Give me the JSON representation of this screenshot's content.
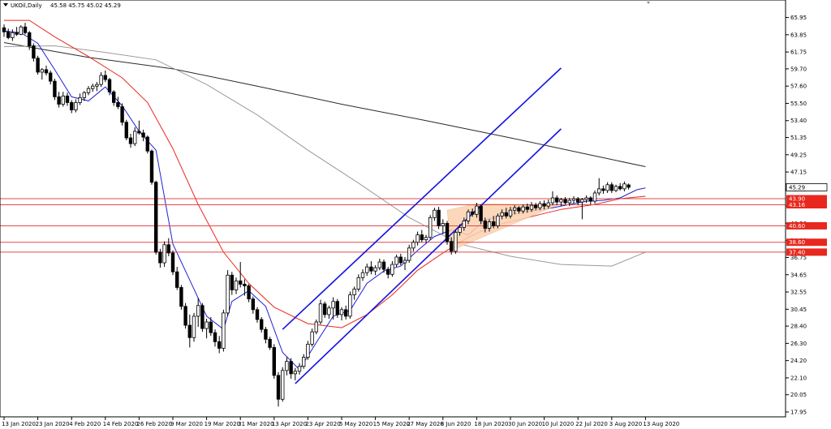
{
  "header": {
    "symbol": "UKOil,Daily",
    "ohlc": "45.58 45.75 45.02 45.29"
  },
  "colors": {
    "candle": "#000000",
    "ma_fast": "#1f1fd6",
    "ma_mid": "#e8281e",
    "ma_slow_dark": "#2a2a2a",
    "ma_slow_grey": "#9a9a9a",
    "channel": "#1414e0",
    "levels": "#e04a4a",
    "triangle_fill": "#fcd2b0",
    "last_price_bg": "#ffffff",
    "level_badge_bg": "#e8281e"
  },
  "chart_data": {
    "type": "candlestick",
    "title": "",
    "xlabel": "",
    "ylabel": "",
    "ylim": [
      17.95,
      66.4
    ],
    "y_ticks": [
      "65.95",
      "63.85",
      "61.75",
      "59.70",
      "57.60",
      "55.50",
      "53.40",
      "51.35",
      "49.25",
      "47.15",
      "45.05",
      "43.00",
      "40.90",
      "38.80",
      "36.75",
      "34.65",
      "32.55",
      "30.45",
      "28.40",
      "26.30",
      "24.20",
      "22.10",
      "20.05",
      "17.95"
    ],
    "x_ticks": [
      "13 Jan 2020",
      "23 Jan 2020",
      "4 Feb 2020",
      "14 Feb 2020",
      "26 Feb 2020",
      "9 Mar 2020",
      "19 Mar 2020",
      "31 Mar 2020",
      "13 Apr 2020",
      "23 Apr 2020",
      "5 May 2020",
      "15 May 2020",
      "27 May 2020",
      "8 Jun 2020",
      "18 Jun 2020",
      "30 Jun 2020",
      "10 Jul 2020",
      "22 Jul 2020",
      "3 Aug 2020",
      "13 Aug 2020"
    ],
    "x_tick_index": [
      0,
      8,
      16,
      24,
      32,
      40,
      48,
      56,
      64,
      72,
      80,
      88,
      96,
      104,
      112,
      120,
      128,
      136,
      144,
      152
    ],
    "candles": [
      [
        64.7,
        65.1,
        63.6,
        64.2
      ],
      [
        64.2,
        64.6,
        63.3,
        63.5
      ],
      [
        63.5,
        64.5,
        63.1,
        64.1
      ],
      [
        64.1,
        64.8,
        63.7,
        63.9
      ],
      [
        63.9,
        65.0,
        63.8,
        64.8
      ],
      [
        64.8,
        65.3,
        63.9,
        64.1
      ],
      [
        64.1,
        64.3,
        62.0,
        62.5
      ],
      [
        62.5,
        62.8,
        60.6,
        61.0
      ],
      [
        61.0,
        61.3,
        59.0,
        59.3
      ],
      [
        59.3,
        59.8,
        58.4,
        59.6
      ],
      [
        59.6,
        60.1,
        58.9,
        59.2
      ],
      [
        59.2,
        59.5,
        57.8,
        58.2
      ],
      [
        58.2,
        58.5,
        55.9,
        56.3
      ],
      [
        56.3,
        56.9,
        55.0,
        55.4
      ],
      [
        55.4,
        56.9,
        55.1,
        56.4
      ],
      [
        56.4,
        56.8,
        55.2,
        55.6
      ],
      [
        55.6,
        55.9,
        54.3,
        54.7
      ],
      [
        54.7,
        56.0,
        54.4,
        55.6
      ],
      [
        55.6,
        56.7,
        55.3,
        56.2
      ],
      [
        56.2,
        57.0,
        55.8,
        56.8
      ],
      [
        56.8,
        57.6,
        56.5,
        57.3
      ],
      [
        57.3,
        57.9,
        56.9,
        57.6
      ],
      [
        57.6,
        58.1,
        57.0,
        57.8
      ],
      [
        57.8,
        59.3,
        57.5,
        58.9
      ],
      [
        58.9,
        59.5,
        58.1,
        58.4
      ],
      [
        58.4,
        58.6,
        56.5,
        56.9
      ],
      [
        56.9,
        57.1,
        55.2,
        55.6
      ],
      [
        55.6,
        56.3,
        54.8,
        55.1
      ],
      [
        55.1,
        55.5,
        52.8,
        53.2
      ],
      [
        53.2,
        53.5,
        51.0,
        51.3
      ],
      [
        51.3,
        51.8,
        50.1,
        50.6
      ],
      [
        50.6,
        52.6,
        50.3,
        52.1
      ],
      [
        52.1,
        53.4,
        51.7,
        51.9
      ],
      [
        51.9,
        52.3,
        50.9,
        51.4
      ],
      [
        51.4,
        51.6,
        49.4,
        49.7
      ],
      [
        49.7,
        49.9,
        45.6,
        45.9
      ],
      [
        45.9,
        46.1,
        37.1,
        37.4
      ],
      [
        37.4,
        37.8,
        35.5,
        36.1
      ],
      [
        36.1,
        38.7,
        35.6,
        38.3
      ],
      [
        38.3,
        39.1,
        36.9,
        37.3
      ],
      [
        37.3,
        37.6,
        34.6,
        35.0
      ],
      [
        35.0,
        35.6,
        32.8,
        33.1
      ],
      [
        33.1,
        33.4,
        30.4,
        30.8
      ],
      [
        30.8,
        31.2,
        28.1,
        28.5
      ],
      [
        28.5,
        29.8,
        25.8,
        27.0
      ],
      [
        27.0,
        30.0,
        26.5,
        29.6
      ],
      [
        29.6,
        31.8,
        28.3,
        30.9
      ],
      [
        30.9,
        31.2,
        27.7,
        28.1
      ],
      [
        28.1,
        29.3,
        26.9,
        28.9
      ],
      [
        28.9,
        29.5,
        27.2,
        27.6
      ],
      [
        27.6,
        28.0,
        25.9,
        26.5
      ],
      [
        26.5,
        27.2,
        25.1,
        25.7
      ],
      [
        25.7,
        30.4,
        25.3,
        30.0
      ],
      [
        30.0,
        35.2,
        29.6,
        34.6
      ],
      [
        34.6,
        35.0,
        32.2,
        32.8
      ],
      [
        32.8,
        34.3,
        32.3,
        33.9
      ],
      [
        33.9,
        36.2,
        33.1,
        33.5
      ],
      [
        33.5,
        34.1,
        32.1,
        33.3
      ],
      [
        33.3,
        33.5,
        31.3,
        31.7
      ],
      [
        31.7,
        32.0,
        29.9,
        30.4
      ],
      [
        30.4,
        30.7,
        28.8,
        29.2
      ],
      [
        29.2,
        29.5,
        27.6,
        28.0
      ],
      [
        28.0,
        28.3,
        26.3,
        26.8
      ],
      [
        26.8,
        27.1,
        25.5,
        25.8
      ],
      [
        25.8,
        26.2,
        22.0,
        22.4
      ],
      [
        22.4,
        22.8,
        18.6,
        19.5
      ],
      [
        19.5,
        23.4,
        19.2,
        23.0
      ],
      [
        23.0,
        24.6,
        22.4,
        24.1
      ],
      [
        24.1,
        24.5,
        22.0,
        22.6
      ],
      [
        22.6,
        23.3,
        21.8,
        22.9
      ],
      [
        22.9,
        23.9,
        22.5,
        23.5
      ],
      [
        23.5,
        25.0,
        23.2,
        24.6
      ],
      [
        24.6,
        26.6,
        24.3,
        26.2
      ],
      [
        26.2,
        28.1,
        25.9,
        27.7
      ],
      [
        27.7,
        29.2,
        27.4,
        28.9
      ],
      [
        28.9,
        31.6,
        28.6,
        31.1
      ],
      [
        31.1,
        31.4,
        29.4,
        29.8
      ],
      [
        29.8,
        30.9,
        29.3,
        30.6
      ],
      [
        30.6,
        31.9,
        29.2,
        31.4
      ],
      [
        31.4,
        31.7,
        29.4,
        29.8
      ],
      [
        29.8,
        30.7,
        29.1,
        30.4
      ],
      [
        30.4,
        30.9,
        29.2,
        29.6
      ],
      [
        29.6,
        32.6,
        29.3,
        32.2
      ],
      [
        32.2,
        33.2,
        31.6,
        32.9
      ],
      [
        32.9,
        34.7,
        32.6,
        34.3
      ],
      [
        34.3,
        35.3,
        33.9,
        34.9
      ],
      [
        34.9,
        36.0,
        34.5,
        35.6
      ],
      [
        35.6,
        36.3,
        34.7,
        35.1
      ],
      [
        35.1,
        35.8,
        34.6,
        35.5
      ],
      [
        35.5,
        36.6,
        35.2,
        36.2
      ],
      [
        36.2,
        36.5,
        34.9,
        35.3
      ],
      [
        35.3,
        35.6,
        34.2,
        34.7
      ],
      [
        34.7,
        36.3,
        34.4,
        35.9
      ],
      [
        35.9,
        37.1,
        35.6,
        36.8
      ],
      [
        36.8,
        37.2,
        35.8,
        36.1
      ],
      [
        36.1,
        36.8,
        35.2,
        36.4
      ],
      [
        36.4,
        38.3,
        36.1,
        37.9
      ],
      [
        37.9,
        38.9,
        37.5,
        38.6
      ],
      [
        38.6,
        39.9,
        38.2,
        39.5
      ],
      [
        39.5,
        40.1,
        38.6,
        38.9
      ],
      [
        38.9,
        39.5,
        38.5,
        39.2
      ],
      [
        39.2,
        41.9,
        38.9,
        41.6
      ],
      [
        41.6,
        42.8,
        41.2,
        42.5
      ],
      [
        42.5,
        42.9,
        40.2,
        40.6
      ],
      [
        40.6,
        41.4,
        39.6,
        40.9
      ],
      [
        40.9,
        41.2,
        38.3,
        38.7
      ],
      [
        38.7,
        39.2,
        37.1,
        37.5
      ],
      [
        37.5,
        40.1,
        37.2,
        39.8
      ],
      [
        39.8,
        40.8,
        39.4,
        40.4
      ],
      [
        40.4,
        41.6,
        40.0,
        41.2
      ],
      [
        41.2,
        42.6,
        40.8,
        42.3
      ],
      [
        42.3,
        42.7,
        41.7,
        42.0
      ],
      [
        42.0,
        43.4,
        41.6,
        43.0
      ],
      [
        43.0,
        43.2,
        40.8,
        41.2
      ],
      [
        41.2,
        41.6,
        39.8,
        40.3
      ],
      [
        40.3,
        41.4,
        39.9,
        41.1
      ],
      [
        41.1,
        41.8,
        40.3,
        40.6
      ],
      [
        40.6,
        42.1,
        40.3,
        41.8
      ],
      [
        41.8,
        42.6,
        41.4,
        42.2
      ],
      [
        42.2,
        42.8,
        41.5,
        41.8
      ],
      [
        41.8,
        42.9,
        41.5,
        42.5
      ],
      [
        42.5,
        43.1,
        42.0,
        42.8
      ],
      [
        42.8,
        43.0,
        42.1,
        42.4
      ],
      [
        42.4,
        43.2,
        42.1,
        42.9
      ],
      [
        42.9,
        43.3,
        42.2,
        42.6
      ],
      [
        42.6,
        43.5,
        42.3,
        43.1
      ],
      [
        43.1,
        43.4,
        42.5,
        42.8
      ],
      [
        42.8,
        43.6,
        42.5,
        43.3
      ],
      [
        43.3,
        43.7,
        42.6,
        43.0
      ],
      [
        43.0,
        43.8,
        42.7,
        43.4
      ],
      [
        43.4,
        44.8,
        43.1,
        44.0
      ],
      [
        44.0,
        44.3,
        43.1,
        43.5
      ],
      [
        43.5,
        44.0,
        43.0,
        43.8
      ],
      [
        43.8,
        44.1,
        43.2,
        43.4
      ],
      [
        43.4,
        44.0,
        43.0,
        43.7
      ],
      [
        43.7,
        44.2,
        43.3,
        43.9
      ],
      [
        43.9,
        44.1,
        43.1,
        43.5
      ],
      [
        43.5,
        44.0,
        41.4,
        43.8
      ],
      [
        43.8,
        44.3,
        43.4,
        44.0
      ],
      [
        44.0,
        44.2,
        43.2,
        43.6
      ],
      [
        43.6,
        44.9,
        43.3,
        44.6
      ],
      [
        44.6,
        46.4,
        44.3,
        45.1
      ],
      [
        45.1,
        45.5,
        44.5,
        44.9
      ],
      [
        44.9,
        45.9,
        44.6,
        45.6
      ],
      [
        45.6,
        45.9,
        44.6,
        44.9
      ],
      [
        44.9,
        45.6,
        44.7,
        45.4
      ],
      [
        45.4,
        45.8,
        44.9,
        45.1
      ],
      [
        45.1,
        46.0,
        44.8,
        45.7
      ],
      [
        45.58,
        45.75,
        45.02,
        45.29
      ]
    ],
    "moving_averages": [
      {
        "color_key": "ma_slow_dark",
        "points": [
          [
            0,
            62.9
          ],
          [
            20,
            61.1
          ],
          [
            40,
            59.7
          ],
          [
            60,
            57.6
          ],
          [
            80,
            55.4
          ],
          [
            100,
            53.4
          ],
          [
            120,
            51.3
          ],
          [
            140,
            49.1
          ],
          [
            152,
            47.8
          ]
        ]
      },
      {
        "color_key": "ma_slow_grey",
        "points": [
          [
            0,
            62.4
          ],
          [
            12,
            62.5
          ],
          [
            24,
            61.7
          ],
          [
            36,
            60.8
          ],
          [
            48,
            57.8
          ],
          [
            60,
            54.1
          ],
          [
            72,
            49.8
          ],
          [
            84,
            45.8
          ],
          [
            96,
            41.6
          ],
          [
            108,
            38.4
          ],
          [
            120,
            36.9
          ],
          [
            132,
            35.9
          ],
          [
            144,
            35.7
          ],
          [
            152,
            37.4
          ]
        ]
      },
      {
        "color_key": "ma_mid",
        "points": [
          [
            0,
            65.6
          ],
          [
            6,
            65.6
          ],
          [
            12,
            63.6
          ],
          [
            20,
            61.2
          ],
          [
            28,
            58.6
          ],
          [
            34,
            55.6
          ],
          [
            40,
            50.0
          ],
          [
            46,
            43.2
          ],
          [
            52,
            37.4
          ],
          [
            58,
            33.6
          ],
          [
            64,
            30.7
          ],
          [
            72,
            28.7
          ],
          [
            80,
            28.2
          ],
          [
            86,
            29.8
          ],
          [
            92,
            32.2
          ],
          [
            98,
            35.2
          ],
          [
            104,
            37.3
          ],
          [
            110,
            39.2
          ],
          [
            116,
            40.6
          ],
          [
            124,
            41.6
          ],
          [
            132,
            42.6
          ],
          [
            140,
            43.2
          ],
          [
            146,
            43.9
          ],
          [
            152,
            44.2
          ]
        ]
      },
      {
        "color_key": "ma_fast",
        "points": [
          [
            0,
            64.3
          ],
          [
            4,
            64.1
          ],
          [
            8,
            62.8
          ],
          [
            12,
            59.6
          ],
          [
            16,
            56.3
          ],
          [
            20,
            55.8
          ],
          [
            24,
            57.5
          ],
          [
            28,
            55.2
          ],
          [
            32,
            52.1
          ],
          [
            36,
            49.8
          ],
          [
            40,
            38.4
          ],
          [
            44,
            34.0
          ],
          [
            48,
            29.6
          ],
          [
            52,
            28.0
          ],
          [
            54,
            31.4
          ],
          [
            58,
            32.7
          ],
          [
            62,
            30.8
          ],
          [
            66,
            25.2
          ],
          [
            70,
            23.1
          ],
          [
            74,
            26.4
          ],
          [
            78,
            29.6
          ],
          [
            82,
            30.3
          ],
          [
            86,
            33.6
          ],
          [
            90,
            35.1
          ],
          [
            94,
            35.7
          ],
          [
            98,
            37.6
          ],
          [
            102,
            39.3
          ],
          [
            106,
            40.1
          ],
          [
            110,
            39.5
          ],
          [
            114,
            41.3
          ],
          [
            118,
            41.9
          ],
          [
            122,
            42.1
          ],
          [
            126,
            42.5
          ],
          [
            130,
            42.8
          ],
          [
            134,
            43.2
          ],
          [
            138,
            43.6
          ],
          [
            142,
            43.7
          ],
          [
            146,
            44.0
          ],
          [
            150,
            45.0
          ],
          [
            152,
            45.2
          ]
        ]
      }
    ],
    "channel": {
      "upper": [
        [
          66,
          28.0
        ],
        [
          132,
          59.8
        ]
      ],
      "lower": [
        [
          69,
          21.4
        ],
        [
          132,
          52.4
        ]
      ]
    },
    "triangle": [
      [
        105,
        42.5
      ],
      [
        112,
        43.3
      ],
      [
        131,
        43.1
      ],
      [
        106,
        37.6
      ]
    ],
    "levels": [
      43.9,
      43.16,
      40.6,
      38.6,
      37.4
    ],
    "level_labels": [
      "43.90",
      "43.16",
      "40.60",
      "38.60",
      "37.40"
    ],
    "last_price": 45.29,
    "last_price_label": "45.29"
  }
}
